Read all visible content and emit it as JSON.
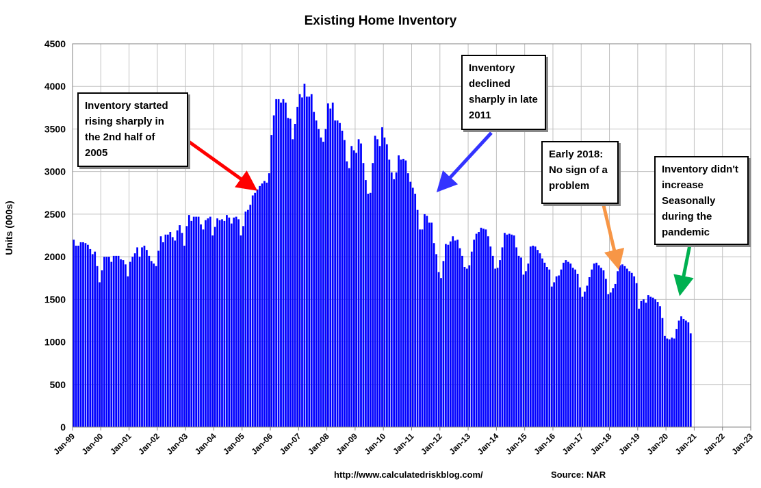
{
  "chart_data": {
    "type": "bar",
    "title": "Existing Home Inventory",
    "ylabel": "Units (000s)",
    "xlabel": "",
    "ylim": [
      0,
      4500
    ],
    "yticks": [
      0,
      500,
      1000,
      1500,
      2000,
      2500,
      3000,
      3500,
      4000,
      4500
    ],
    "xticks": [
      "Jan-99",
      "Jan-00",
      "Jan-01",
      "Jan-02",
      "Jan-03",
      "Jan-04",
      "Jan-05",
      "Jan-06",
      "Jan-07",
      "Jan-08",
      "Jan-09",
      "Jan-10",
      "Jan-11",
      "Jan-12",
      "Jan-13",
      "Jan-14",
      "Jan-15",
      "Jan-16",
      "Jan-17",
      "Jan-18",
      "Jan-19",
      "Jan-20",
      "Jan-21",
      "Jan-22",
      "Jan-23"
    ],
    "grid": true,
    "bar_color": "#0000FF",
    "series": [
      {
        "start": "Jan-99",
        "frequency": "monthly",
        "values": [
          2200,
          2130,
          2130,
          2170,
          2170,
          2160,
          2140,
          2090,
          2030,
          2060,
          1890,
          1700,
          1840,
          2000,
          2000,
          2000,
          1940,
          2010,
          2010,
          2010,
          1970,
          1960,
          1910,
          1770,
          1940,
          2000,
          2040,
          2110,
          2000,
          2110,
          2130,
          2080,
          2010,
          1950,
          1920,
          1890,
          2070,
          2240,
          2170,
          2260,
          2260,
          2290,
          2230,
          2190,
          2310,
          2370,
          2280,
          2130,
          2360,
          2490,
          2420,
          2470,
          2470,
          2470,
          2380,
          2320,
          2430,
          2450,
          2470,
          2250,
          2350,
          2450,
          2430,
          2440,
          2420,
          2490,
          2460,
          2390,
          2460,
          2470,
          2440,
          2250,
          2360,
          2530,
          2550,
          2610,
          2720,
          2750,
          2790,
          2830,
          2860,
          2890,
          2870,
          2980,
          3430,
          3660,
          3850,
          3850,
          3810,
          3850,
          3810,
          3630,
          3620,
          3380,
          3560,
          3760,
          3910,
          3870,
          4030,
          3880,
          3880,
          3910,
          3700,
          3600,
          3500,
          3400,
          3350,
          3500,
          3800,
          3740,
          3810,
          3600,
          3600,
          3570,
          3480,
          3370,
          3120,
          3040,
          3300,
          3250,
          3220,
          3380,
          3330,
          3100,
          2900,
          2740,
          2750,
          3100,
          3420,
          3380,
          3300,
          3520,
          3400,
          3320,
          3140,
          2990,
          2910,
          2990,
          3190,
          3140,
          3150,
          3130,
          2980,
          2880,
          2810,
          2740,
          2550,
          2320,
          2320,
          2500,
          2480,
          2400,
          2400,
          2160,
          2030,
          1820,
          1750,
          1950,
          2150,
          2140,
          2180,
          2240,
          2190,
          2200,
          2100,
          2010,
          1880,
          1860,
          1900,
          2060,
          2200,
          2270,
          2290,
          2340,
          2330,
          2320,
          2240,
          2120,
          2010,
          1860,
          1870,
          1960,
          2110,
          2280,
          2260,
          2270,
          2260,
          2250,
          2110,
          2010,
          1990,
          1790,
          1830,
          1920,
          2120,
          2130,
          2120,
          2080,
          2040,
          1980,
          1930,
          1880,
          1850,
          1650,
          1700,
          1770,
          1780,
          1850,
          1930,
          1960,
          1940,
          1920,
          1870,
          1850,
          1800,
          1640,
          1530,
          1590,
          1660,
          1760,
          1850,
          1920,
          1930,
          1900,
          1870,
          1840,
          1740,
          1560,
          1580,
          1630,
          1680,
          1830,
          1900,
          1910,
          1890,
          1860,
          1830,
          1810,
          1770,
          1690,
          1390,
          1480,
          1500,
          1460,
          1550,
          1530,
          1520,
          1500,
          1470,
          1420,
          1280,
          1070,
          1040,
          1030,
          1050,
          1040,
          1150,
          1250,
          1300,
          1270,
          1250,
          1230,
          1100
        ]
      }
    ],
    "annotations": [
      {
        "text": "Inventory started rising sharply in the 2nd half of 2005",
        "arrow_color": "#FF0000"
      },
      {
        "text": "Inventory declined sharply in late 2011",
        "arrow_color": "#3333FF"
      },
      {
        "text": "Early 2018: No sign of a problem",
        "arrow_color": "#F79646"
      },
      {
        "text": "Inventory didn't increase Seasonally during the pandemic",
        "arrow_color": "#00B050"
      }
    ]
  },
  "footer": {
    "url": "http://www.calculatedriskblog.com/",
    "source": "Source: NAR"
  }
}
